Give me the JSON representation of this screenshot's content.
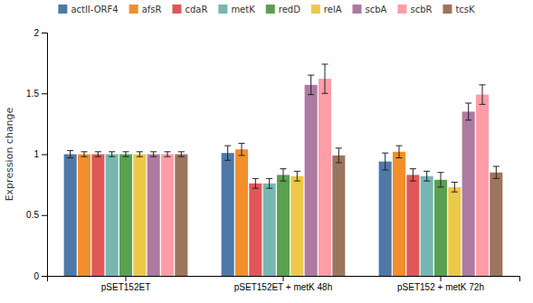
{
  "chart_data": {
    "type": "bar",
    "y_label": "Expression change",
    "categories": [
      "pSET152ET",
      "pSET152ET + metK 48h",
      "pSET152 + metK 72h"
    ],
    "series": [
      {
        "name": "actII-ORF4",
        "values": [
          1.0,
          1.01,
          0.94
        ],
        "errors": [
          0.03,
          0.06,
          0.07
        ]
      },
      {
        "name": "afsR",
        "values": [
          1.0,
          1.04,
          1.02
        ],
        "errors": [
          0.02,
          0.05,
          0.05
        ]
      },
      {
        "name": "cdaR",
        "values": [
          1.0,
          0.76,
          0.83
        ],
        "errors": [
          0.02,
          0.04,
          0.05
        ]
      },
      {
        "name": "metK",
        "values": [
          1.0,
          0.76,
          0.82
        ],
        "errors": [
          0.02,
          0.04,
          0.04
        ]
      },
      {
        "name": "redD",
        "values": [
          1.0,
          0.83,
          0.79
        ],
        "errors": [
          0.02,
          0.05,
          0.06
        ]
      },
      {
        "name": "relA",
        "values": [
          1.0,
          0.82,
          0.73
        ],
        "errors": [
          0.02,
          0.04,
          0.04
        ]
      },
      {
        "name": "scbA",
        "values": [
          1.0,
          1.57,
          1.35
        ],
        "errors": [
          0.02,
          0.08,
          0.07
        ]
      },
      {
        "name": "scbR",
        "values": [
          1.0,
          1.62,
          1.49
        ],
        "errors": [
          0.02,
          0.12,
          0.08
        ]
      },
      {
        "name": "tcsK",
        "values": [
          1.0,
          0.99,
          0.85
        ],
        "errors": [
          0.02,
          0.06,
          0.05
        ]
      }
    ],
    "ylim": [
      0,
      2
    ],
    "yticks": [
      0,
      0.5,
      1,
      1.5,
      2
    ],
    "grid": false,
    "legend": "top"
  }
}
